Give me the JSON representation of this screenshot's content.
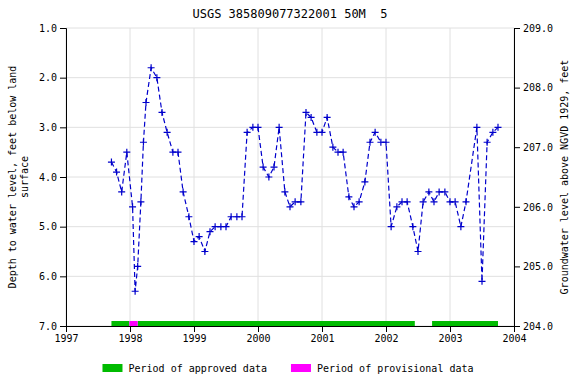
{
  "chart_data": {
    "type": "line",
    "title": "USGS 385809077322001 50M  5",
    "y_label": "Depth to water level, feet below land\nsurface",
    "y2_label": "Groundwater level above NGVD 1929, feet",
    "x": [
      1997.71,
      1997.79,
      1997.87,
      1997.95,
      1998.04,
      1998.08,
      1998.12,
      1998.17,
      1998.21,
      1998.25,
      1998.33,
      1998.42,
      1998.5,
      1998.58,
      1998.67,
      1998.75,
      1998.83,
      1998.92,
      1999.0,
      1999.08,
      1999.17,
      1999.25,
      1999.33,
      1999.42,
      1999.5,
      1999.58,
      1999.67,
      1999.75,
      1999.83,
      1999.92,
      2000.0,
      2000.08,
      2000.17,
      2000.25,
      2000.33,
      2000.42,
      2000.5,
      2000.58,
      2000.67,
      2000.75,
      2000.83,
      2000.92,
      2001.0,
      2001.08,
      2001.17,
      2001.25,
      2001.33,
      2001.42,
      2001.5,
      2001.58,
      2001.67,
      2001.75,
      2001.83,
      2001.92,
      2002.0,
      2002.08,
      2002.17,
      2002.25,
      2002.33,
      2002.42,
      2002.5,
      2002.58,
      2002.67,
      2002.75,
      2002.83,
      2002.92,
      2003.0,
      2003.08,
      2003.17,
      2003.25,
      2003.42,
      2003.5,
      2003.58,
      2003.67,
      2003.75
    ],
    "series": [
      {
        "color": "#0000cc",
        "line_style": "dashed",
        "marker": "plus",
        "values": [
          3.7,
          3.9,
          4.3,
          3.5,
          4.6,
          6.3,
          5.8,
          4.5,
          3.3,
          2.5,
          1.8,
          2.0,
          2.7,
          3.1,
          3.5,
          3.5,
          4.3,
          4.8,
          5.3,
          5.2,
          5.5,
          5.1,
          5.0,
          5.0,
          5.0,
          4.8,
          4.8,
          4.8,
          3.1,
          3.0,
          3.0,
          3.8,
          4.0,
          3.8,
          3.0,
          4.3,
          4.6,
          4.5,
          4.5,
          2.7,
          2.8,
          3.1,
          3.1,
          2.8,
          3.4,
          3.5,
          3.5,
          4.4,
          4.6,
          4.5,
          4.1,
          3.3,
          3.1,
          3.3,
          3.3,
          5.0,
          4.6,
          4.5,
          4.5,
          5.0,
          5.5,
          4.5,
          4.3,
          4.5,
          4.3,
          4.3,
          4.5,
          4.5,
          5.0,
          4.5,
          3.0,
          6.1,
          3.3,
          3.1,
          3.0
        ]
      }
    ],
    "xlim": [
      1997.0,
      2004.0
    ],
    "xticks": [
      1997,
      1998,
      1999,
      2000,
      2001,
      2002,
      2003,
      2004
    ],
    "ylim": [
      7.0,
      1.0
    ],
    "yticks": [
      {
        "value": 1.0,
        "label": "1.0"
      },
      {
        "value": 2.0,
        "label": "2.0"
      },
      {
        "value": 3.0,
        "label": "3.0"
      },
      {
        "value": 4.0,
        "label": "4.0"
      },
      {
        "value": 5.0,
        "label": "5.0"
      },
      {
        "value": 6.0,
        "label": "6.0"
      },
      {
        "value": 7.0,
        "label": "7.0"
      }
    ],
    "y2lim": [
      204.0,
      209.0
    ],
    "y2ticks": [
      {
        "value": 204.0,
        "label": "204.0"
      },
      {
        "value": 205.0,
        "label": "205.0"
      },
      {
        "value": 206.0,
        "label": "206.0"
      },
      {
        "value": 207.0,
        "label": "207.0"
      },
      {
        "value": 208.0,
        "label": "208.0"
      },
      {
        "value": 209.0,
        "label": "209.0"
      }
    ],
    "grid": true,
    "legend": "bottom",
    "periods": [
      {
        "name": "Period of approved data",
        "color": "#00bb00",
        "spans": [
          [
            1997.71,
            1997.99
          ],
          [
            1998.12,
            2002.45
          ],
          [
            2002.72,
            2003.75
          ]
        ]
      },
      {
        "name": "Period of provisional data",
        "color": "#ff00ff",
        "spans": [
          [
            1997.99,
            1998.12
          ]
        ]
      }
    ]
  }
}
